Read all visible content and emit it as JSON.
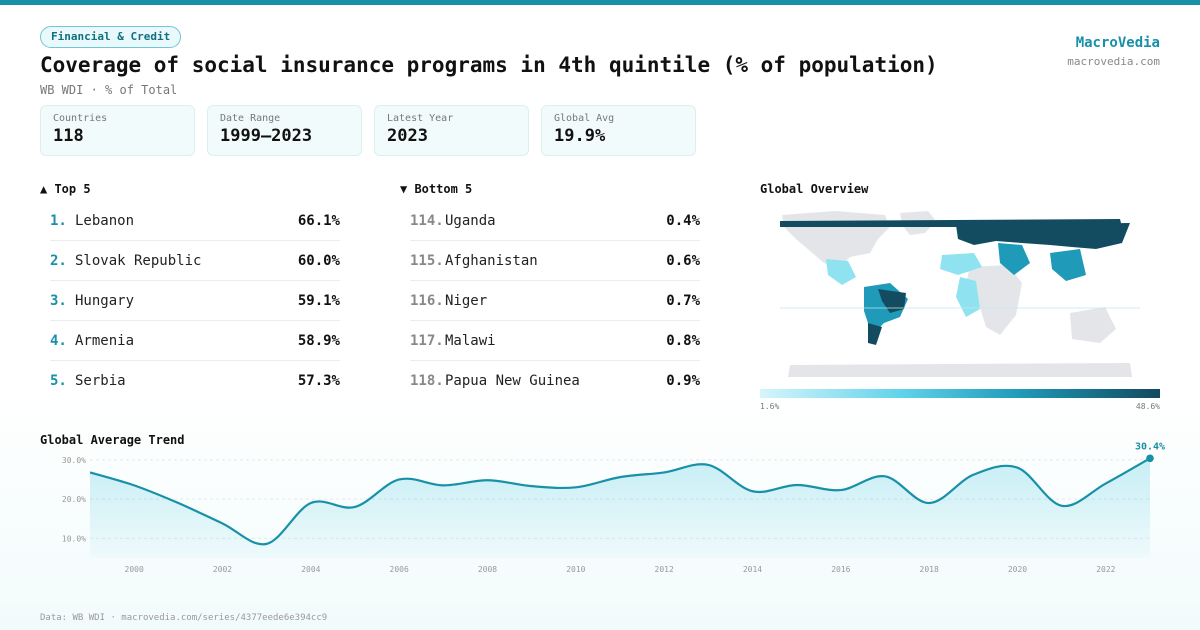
{
  "header": {
    "badge": "Financial & Credit",
    "title": "Coverage of social insurance programs in 4th quintile (% of population)",
    "subtitle": "WB WDI · % of Total",
    "brand_name": "MacroVedia",
    "brand_url": "macrovedia.com"
  },
  "stats": [
    {
      "label": "Countries",
      "value": "118"
    },
    {
      "label": "Date Range",
      "value": "1999–2023"
    },
    {
      "label": "Latest Year",
      "value": "2023"
    },
    {
      "label": "Global Avg",
      "value": "19.9%"
    }
  ],
  "top5": {
    "title": "▲ Top 5",
    "items": [
      {
        "rank": "1.",
        "name": "Lebanon",
        "value": "66.1%"
      },
      {
        "rank": "2.",
        "name": "Slovak Republic",
        "value": "60.0%"
      },
      {
        "rank": "3.",
        "name": "Hungary",
        "value": "59.1%"
      },
      {
        "rank": "4.",
        "name": "Armenia",
        "value": "58.9%"
      },
      {
        "rank": "5.",
        "name": "Serbia",
        "value": "57.3%"
      }
    ]
  },
  "bottom5": {
    "title": "▼ Bottom 5",
    "items": [
      {
        "rank": "114.",
        "name": "Uganda",
        "value": "0.4%"
      },
      {
        "rank": "115.",
        "name": "Afghanistan",
        "value": "0.6%"
      },
      {
        "rank": "116.",
        "name": "Niger",
        "value": "0.7%"
      },
      {
        "rank": "117.",
        "name": "Malawi",
        "value": "0.8%"
      },
      {
        "rank": "118.",
        "name": "Papua New Guinea",
        "value": "0.9%"
      }
    ]
  },
  "map": {
    "title": "Global Overview",
    "legend_min": "1.6%",
    "legend_max": "48.6%",
    "colors": {
      "no_data": "#e3e5e8",
      "low": "#8fe3f1",
      "mid": "#1f9ab8",
      "high": "#134c60"
    }
  },
  "trend_title": "Global Average Trend",
  "chart_data": {
    "type": "area",
    "title": "Global Average Trend",
    "x": [
      1999,
      2000,
      2001,
      2002,
      2003,
      2004,
      2005,
      2006,
      2007,
      2008,
      2009,
      2010,
      2011,
      2012,
      2013,
      2014,
      2015,
      2016,
      2017,
      2018,
      2019,
      2020,
      2021,
      2022,
      2023
    ],
    "y": [
      26.8,
      23.5,
      19.0,
      13.8,
      8.6,
      19.0,
      18.0,
      25.0,
      23.5,
      24.8,
      23.3,
      23.0,
      25.6,
      26.8,
      28.7,
      22.0,
      23.6,
      22.3,
      25.8,
      19.0,
      26.2,
      28.0,
      18.3,
      24.0,
      30.4
    ],
    "x_ticks": [
      "2000",
      "2002",
      "2004",
      "2006",
      "2008",
      "2010",
      "2012",
      "2014",
      "2016",
      "2018",
      "2020",
      "2022"
    ],
    "y_ticks": [
      "10.0%",
      "20.0%",
      "30.0%"
    ],
    "y_tick_values": [
      10,
      20,
      30
    ],
    "xlim": [
      1999,
      2023
    ],
    "ylim": [
      5,
      32
    ],
    "last_label": "30.4%",
    "grid": true,
    "color": "#1890a8"
  },
  "footer": "Data: WB WDI · macrovedia.com/series/4377eede6e394cc9"
}
